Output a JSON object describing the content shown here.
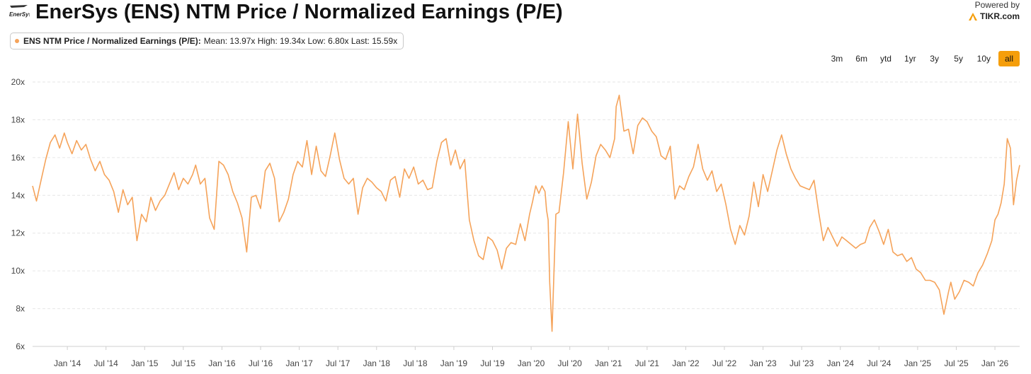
{
  "header": {
    "logo_text": "EnerSys",
    "title": "EnerSys (ENS) NTM Price / Normalized Earnings (P/E)",
    "powered_by": "Powered by",
    "brand": "TIKR.com"
  },
  "legend": {
    "name": "ENS NTM Price / Normalized Earnings (P/E):",
    "stats": "Mean: 13.97x High: 19.34x Low: 6.80x Last: 15.59x"
  },
  "range_buttons": [
    "3m",
    "6m",
    "ytd",
    "1yr",
    "3y",
    "5y",
    "10y",
    "all"
  ],
  "active_range": "all",
  "colors": {
    "line": "#f5a35a",
    "active": "#f59e0b",
    "grid": "#e6e6e6"
  },
  "chart_data": {
    "type": "line",
    "title": "EnerSys (ENS) NTM Price / Normalized Earnings (P/E)",
    "xlabel": "",
    "ylabel": "",
    "ylim": [
      6,
      20
    ],
    "xlim": [
      2013.55,
      2026.32
    ],
    "y_ticks": [
      6,
      8,
      10,
      12,
      14,
      16,
      18,
      20
    ],
    "y_tick_labels": [
      "6x",
      "8x",
      "10x",
      "12x",
      "14x",
      "16x",
      "18x",
      "20x"
    ],
    "x_ticks": [
      2014.0,
      2014.5,
      2015.0,
      2015.5,
      2016.0,
      2016.5,
      2017.0,
      2017.5,
      2018.0,
      2018.5,
      2019.0,
      2019.5,
      2020.0,
      2020.5,
      2021.0,
      2021.5,
      2022.0,
      2022.5,
      2023.0,
      2023.5,
      2024.0,
      2024.5,
      2025.0,
      2025.5,
      2026.0
    ],
    "x_tick_labels": [
      "Jan '14",
      "Jul '14",
      "Jan '15",
      "Jul '15",
      "Jan '16",
      "Jul '16",
      "Jan '17",
      "Jul '17",
      "Jan '18",
      "Jul '18",
      "Jan '19",
      "Jul '19",
      "Jan '20",
      "Jul '20",
      "Jan '21",
      "Jul '21",
      "Jan '22",
      "Jul '22",
      "Jan '23",
      "Jul '23",
      "Jan '24",
      "Jul '24",
      "Jan '25",
      "Jul '25",
      "Jan '26"
    ],
    "grid": true,
    "series": [
      {
        "name": "ENS NTM Price / Normalized Earnings (P/E)",
        "x": [
          2013.55,
          2013.6,
          2013.66,
          2013.72,
          2013.78,
          2013.84,
          2013.9,
          2013.96,
          2014.0,
          2014.06,
          2014.12,
          2014.18,
          2014.24,
          2014.3,
          2014.36,
          2014.42,
          2014.48,
          2014.54,
          2014.6,
          2014.66,
          2014.72,
          2014.78,
          2014.84,
          2014.9,
          2014.96,
          2015.02,
          2015.08,
          2015.14,
          2015.2,
          2015.26,
          2015.32,
          2015.38,
          2015.44,
          2015.5,
          2015.56,
          2015.62,
          2015.66,
          2015.72,
          2015.78,
          2015.84,
          2015.9,
          2015.96,
          2016.02,
          2016.08,
          2016.14,
          2016.2,
          2016.26,
          2016.32,
          2016.38,
          2016.44,
          2016.5,
          2016.56,
          2016.62,
          2016.68,
          2016.74,
          2016.8,
          2016.86,
          2016.92,
          2016.98,
          2017.04,
          2017.1,
          2017.16,
          2017.22,
          2017.28,
          2017.34,
          2017.4,
          2017.46,
          2017.52,
          2017.58,
          2017.64,
          2017.7,
          2017.76,
          2017.82,
          2017.88,
          2017.94,
          2018.0,
          2018.06,
          2018.12,
          2018.18,
          2018.24,
          2018.3,
          2018.36,
          2018.42,
          2018.48,
          2018.54,
          2018.6,
          2018.66,
          2018.72,
          2018.78,
          2018.84,
          2018.9,
          2018.96,
          2019.02,
          2019.08,
          2019.14,
          2019.2,
          2019.26,
          2019.32,
          2019.38,
          2019.44,
          2019.5,
          2019.56,
          2019.62,
          2019.68,
          2019.74,
          2019.8,
          2019.86,
          2019.92,
          2019.98,
          2020.02,
          2020.06,
          2020.1,
          2020.14,
          2020.18,
          2020.2,
          2020.22,
          2020.24,
          2020.27,
          2020.32,
          2020.36,
          2020.42,
          2020.48,
          2020.54,
          2020.6,
          2020.66,
          2020.72,
          2020.78,
          2020.84,
          2020.9,
          2020.96,
          2021.02,
          2021.08,
          2021.1,
          2021.14,
          2021.2,
          2021.26,
          2021.32,
          2021.38,
          2021.44,
          2021.5,
          2021.56,
          2021.62,
          2021.68,
          2021.74,
          2021.8,
          2021.86,
          2021.92,
          2021.98,
          2022.04,
          2022.1,
          2022.16,
          2022.22,
          2022.28,
          2022.34,
          2022.4,
          2022.46,
          2022.52,
          2022.58,
          2022.64,
          2022.7,
          2022.76,
          2022.82,
          2022.88,
          2022.94,
          2023.0,
          2023.06,
          2023.12,
          2023.18,
          2023.24,
          2023.3,
          2023.36,
          2023.42,
          2023.48,
          2023.54,
          2023.6,
          2023.66,
          2023.72,
          2023.78,
          2023.84,
          2023.9,
          2023.96,
          2024.02,
          2024.08,
          2024.14,
          2024.2,
          2024.26,
          2024.32,
          2024.38,
          2024.44,
          2024.5,
          2024.56,
          2024.62,
          2024.68,
          2024.74,
          2024.8,
          2024.86,
          2024.92,
          2024.98,
          2025.04,
          2025.1,
          2025.16,
          2025.22,
          2025.28,
          2025.34,
          2025.4,
          2025.43,
          2025.48,
          2025.54,
          2025.6,
          2025.66,
          2025.72,
          2025.78,
          2025.84,
          2025.9,
          2025.96,
          2026.0,
          2026.04,
          2026.08,
          2026.12,
          2026.16,
          2026.2,
          2026.24,
          2026.28,
          2026.32
        ],
        "y": [
          14.5,
          13.7,
          14.8,
          15.9,
          16.8,
          17.2,
          16.5,
          17.3,
          16.8,
          16.2,
          16.9,
          16.4,
          16.7,
          15.9,
          15.3,
          15.8,
          15.1,
          14.8,
          14.2,
          13.1,
          14.3,
          13.5,
          13.9,
          11.6,
          13.0,
          12.6,
          13.9,
          13.2,
          13.7,
          14.0,
          14.6,
          15.2,
          14.3,
          14.9,
          14.6,
          15.1,
          15.6,
          14.6,
          14.9,
          12.8,
          12.2,
          15.8,
          15.6,
          15.1,
          14.2,
          13.6,
          12.8,
          11.0,
          13.9,
          14.0,
          13.3,
          15.3,
          15.7,
          14.9,
          12.6,
          13.1,
          13.8,
          15.1,
          15.8,
          15.5,
          16.9,
          15.1,
          16.6,
          15.3,
          15.0,
          16.1,
          17.3,
          15.9,
          14.9,
          14.6,
          14.9,
          13.0,
          14.4,
          14.9,
          14.7,
          14.4,
          14.2,
          13.7,
          14.8,
          15.0,
          13.9,
          15.4,
          14.9,
          15.5,
          14.6,
          14.8,
          14.3,
          14.4,
          15.8,
          16.8,
          17.0,
          15.6,
          16.4,
          15.4,
          15.9,
          12.7,
          11.6,
          10.8,
          10.6,
          11.8,
          11.6,
          11.1,
          10.1,
          11.2,
          11.5,
          11.4,
          12.5,
          11.6,
          13.0,
          13.7,
          14.5,
          14.1,
          14.5,
          14.2,
          13.2,
          12.7,
          9.4,
          6.8,
          13.0,
          13.1,
          15.2,
          17.9,
          15.4,
          18.3,
          15.7,
          13.8,
          14.7,
          16.1,
          16.7,
          16.4,
          16.0,
          17.0,
          18.7,
          19.3,
          17.4,
          17.5,
          16.2,
          17.7,
          18.1,
          17.9,
          17.4,
          17.1,
          16.1,
          15.9,
          16.6,
          13.8,
          14.5,
          14.3,
          15.0,
          15.5,
          16.7,
          15.4,
          14.8,
          15.3,
          14.2,
          14.6,
          13.5,
          12.2,
          11.4,
          12.4,
          11.9,
          12.9,
          14.7,
          13.4,
          15.1,
          14.2,
          15.3,
          16.4,
          17.2,
          16.2,
          15.4,
          14.9,
          14.5,
          14.4,
          14.3,
          14.8,
          13.1,
          11.6,
          12.3,
          11.8,
          11.3,
          11.8,
          11.6,
          11.4,
          11.2,
          11.4,
          11.5,
          12.3,
          12.7,
          12.1,
          11.4,
          12.2,
          11.0,
          10.8,
          10.9,
          10.5,
          10.7,
          10.1,
          9.9,
          9.5,
          9.5,
          9.4,
          9.0,
          7.7,
          8.9,
          9.4,
          8.5,
          8.9,
          9.5,
          9.4,
          9.2,
          9.9,
          10.3,
          10.9,
          11.6,
          12.7,
          13.0,
          13.6,
          14.6,
          17.0,
          16.5,
          13.5,
          14.8,
          15.6
        ]
      }
    ]
  }
}
